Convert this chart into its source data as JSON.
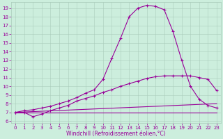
{
  "bg_color": "#cceedd",
  "grid_color": "#aaccbb",
  "line_color": "#990099",
  "xlabel": "Windchill (Refroidissement éolien,°C)",
  "xlim": [
    -0.5,
    23.5
  ],
  "ylim": [
    5.8,
    19.7
  ],
  "yticks": [
    6,
    7,
    8,
    9,
    10,
    11,
    12,
    13,
    14,
    15,
    16,
    17,
    18,
    19
  ],
  "xticks": [
    0,
    1,
    2,
    3,
    4,
    5,
    6,
    7,
    8,
    9,
    10,
    11,
    12,
    13,
    14,
    15,
    16,
    17,
    18,
    19,
    20,
    21,
    22,
    23
  ],
  "line1_x": [
    0,
    1,
    2,
    3,
    4,
    5,
    6,
    7,
    8,
    9,
    10,
    11,
    12,
    13,
    14,
    15,
    16,
    17,
    18,
    19,
    20,
    21,
    22,
    23
  ],
  "line1_y": [
    7.0,
    7.0,
    7.0,
    7.0,
    7.0,
    7.0,
    7.0,
    7.0,
    7.0,
    7.0,
    7.0,
    7.0,
    7.0,
    7.0,
    7.0,
    7.0,
    7.0,
    7.0,
    7.0,
    7.0,
    7.0,
    7.0,
    7.0,
    7.0
  ],
  "line2_x": [
    0,
    23
  ],
  "line2_y": [
    7.0,
    8.0
  ],
  "line3_x": [
    0,
    1,
    2,
    3,
    4,
    5,
    6,
    7,
    8,
    9,
    10,
    11,
    12,
    13,
    14,
    15,
    16,
    17,
    18,
    19,
    20,
    21,
    22,
    23
  ],
  "line3_y": [
    7.0,
    7.0,
    6.5,
    6.8,
    7.2,
    7.5,
    7.8,
    8.3,
    8.6,
    8.9,
    9.3,
    9.6,
    10.0,
    10.3,
    10.6,
    10.9,
    11.1,
    11.2,
    11.2,
    11.2,
    11.2,
    11.0,
    10.8,
    9.5
  ],
  "line4_x": [
    0,
    1,
    2,
    3,
    4,
    5,
    6,
    7,
    8,
    9,
    10,
    11,
    12,
    13,
    14,
    15,
    16,
    17,
    18,
    19,
    20,
    21,
    22,
    23
  ],
  "line4_y": [
    7.0,
    7.2,
    7.3,
    7.5,
    7.7,
    8.0,
    8.3,
    8.7,
    9.2,
    9.6,
    10.8,
    13.2,
    15.5,
    18.0,
    19.0,
    19.3,
    19.2,
    18.8,
    16.3,
    13.0,
    10.0,
    8.5,
    7.8,
    7.5
  ]
}
